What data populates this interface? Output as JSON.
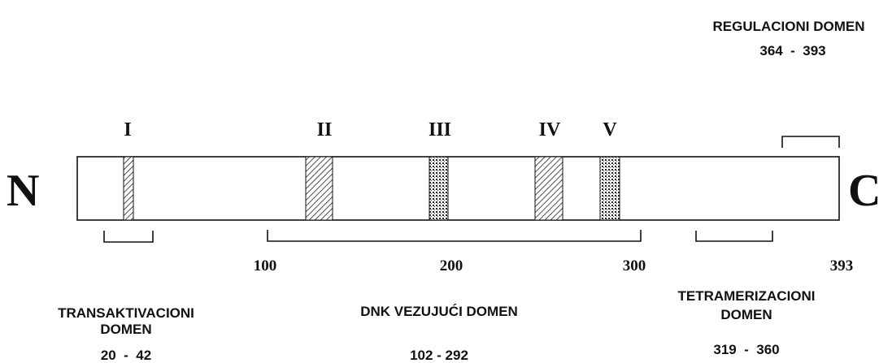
{
  "terminals": {
    "n": "N",
    "c": "C"
  },
  "regions": [
    {
      "label": "I"
    },
    {
      "label": "II"
    },
    {
      "label": "III"
    },
    {
      "label": "IV"
    },
    {
      "label": "V"
    }
  ],
  "scale": [
    "100",
    "200",
    "300",
    "393"
  ],
  "domains": {
    "transactivation": {
      "name": [
        "TRANSAKTIVACIONI",
        "DOMEN"
      ],
      "range": "20  -  42"
    },
    "dna_binding": {
      "name": [
        "DNK VEZUJUĆI DOMEN"
      ],
      "range": "102 - 292"
    },
    "tetramerization": {
      "name": [
        "TETRAMERIZACIONI",
        "DOMEN"
      ],
      "range": "319  -  360"
    },
    "regulatory": {
      "name": [
        "REGULACIONI DOMEN"
      ],
      "range": "364  -  393"
    }
  }
}
